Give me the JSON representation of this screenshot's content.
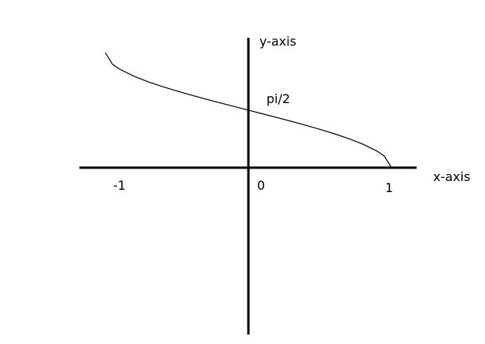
{
  "chart_data": {
    "type": "line",
    "title": "",
    "xlabel": "x-axis",
    "ylabel": "y-axis",
    "xlim": [
      -1,
      1
    ],
    "ylim": [
      -2.8,
      3.1416
    ],
    "grid": false,
    "tick_labels": {
      "x_neg": "-1",
      "origin": "0",
      "x_pos": "1"
    },
    "annotations": [
      {
        "text": "pi/2",
        "x": 0,
        "y": 1.5708
      }
    ],
    "series": [
      {
        "x": [
          -1,
          -0.95,
          -0.9,
          -0.8,
          -0.7,
          -0.6,
          -0.5,
          -0.4,
          -0.3,
          -0.2,
          -0.1,
          0,
          0.1,
          0.2,
          0.3,
          0.4,
          0.5,
          0.6,
          0.7,
          0.8,
          0.9,
          0.95,
          1
        ],
        "values": [
          3.1416,
          2.824,
          2.6906,
          2.4981,
          2.3462,
          2.2143,
          2.0944,
          1.9823,
          1.8755,
          1.7722,
          1.671,
          1.5708,
          1.4706,
          1.3694,
          1.2661,
          1.1593,
          1.0472,
          0.9273,
          0.7954,
          0.6435,
          0.451,
          0.3176,
          0
        ]
      }
    ],
    "colors": {
      "line": "#000000",
      "axis": "#000000"
    }
  }
}
